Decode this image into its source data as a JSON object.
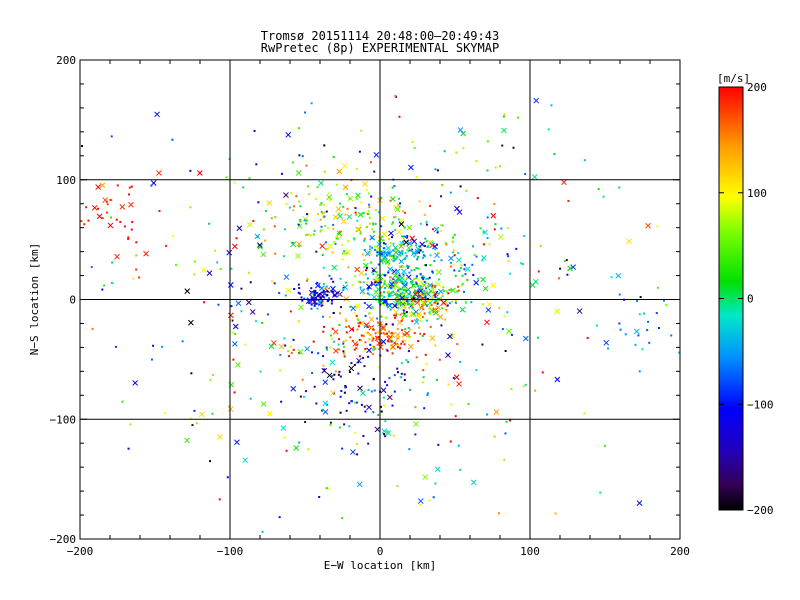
{
  "chart_data": {
    "type": "scatter",
    "title": "Tromsø 20151114 20:48:00–20:49:43",
    "subtitle": "RwPretec (8p) EXPERIMENTAL SKYMAP",
    "xlabel": "E−W location [km]",
    "ylabel": "N−S location [km]",
    "xlim": [
      -200,
      200
    ],
    "ylim": [
      -200,
      200
    ],
    "xticks": [
      "−200",
      "−100",
      "0",
      "100",
      "200"
    ],
    "yticks": [
      "−200",
      "−100",
      "0",
      "100",
      "200"
    ],
    "grid": true,
    "colorbar": {
      "label": "[m/s]",
      "range": [
        -200,
        200
      ],
      "ticks": [
        "200",
        "100",
        "0",
        "−100",
        "−200"
      ]
    },
    "marker_types": [
      "dot",
      "x"
    ],
    "clusters": [
      {
        "x": 15,
        "y": 5,
        "sx": 14,
        "sy": 10,
        "n": 260,
        "v": -20,
        "vs": 60
      },
      {
        "x": 30,
        "y": 0,
        "sx": 12,
        "sy": 8,
        "n": 90,
        "v": 130,
        "vs": 50
      },
      {
        "x": -40,
        "y": 3,
        "sx": 8,
        "sy": 5,
        "n": 80,
        "v": -120,
        "vs": 25
      },
      {
        "x": 0,
        "y": -30,
        "sx": 18,
        "sy": 8,
        "n": 150,
        "v": 170,
        "vs": 40
      },
      {
        "x": -25,
        "y": 60,
        "sx": 25,
        "sy": 20,
        "n": 170,
        "v": 70,
        "vs": 60
      },
      {
        "x": 10,
        "y": 40,
        "sx": 12,
        "sy": 5,
        "n": 80,
        "v": -40,
        "vs": 30
      },
      {
        "x": 30,
        "y": 30,
        "sx": 25,
        "sy": 20,
        "n": 130,
        "v": 0,
        "vs": 90
      },
      {
        "x": -10,
        "y": -75,
        "sx": 22,
        "sy": 22,
        "n": 90,
        "v": -130,
        "vs": 60
      },
      {
        "x": -180,
        "y": 70,
        "sx": 15,
        "sy": 20,
        "n": 40,
        "v": 190,
        "vs": 15
      },
      {
        "x": 175,
        "y": -25,
        "sx": 12,
        "sy": 15,
        "n": 20,
        "v": -60,
        "vs": 20
      },
      {
        "x": 0,
        "y": 0,
        "sx": 85,
        "sy": 85,
        "n": 520,
        "v": 0,
        "vs": 120
      }
    ]
  }
}
